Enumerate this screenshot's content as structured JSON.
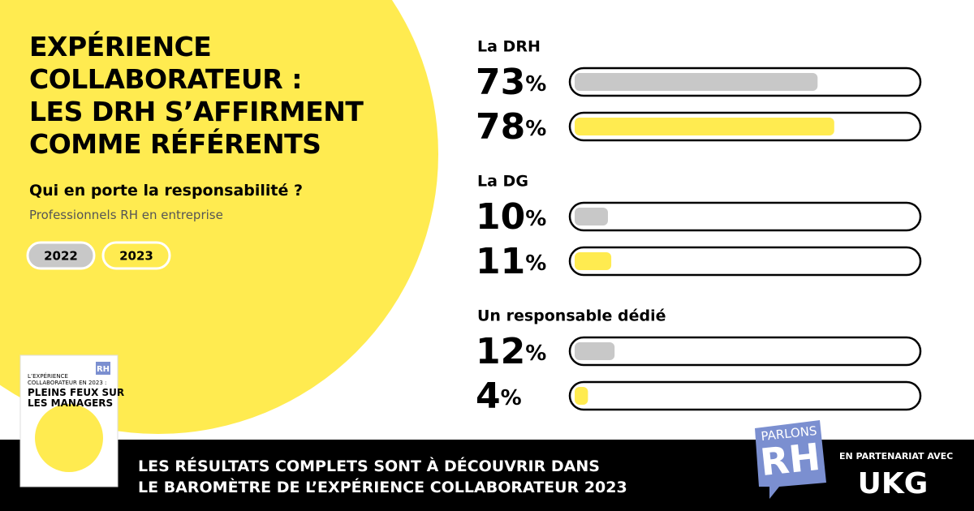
{
  "chart_data": {
    "type": "bar",
    "title": "EXPÉRIENCE\nCOLLABORATEUR :\nLES DRH S’AFFIRMENT\nCOMME RÉFÉRENTS",
    "subtitle": "Qui en porte la responsabilité ?",
    "note": "Professionnels RH en entreprise",
    "categories": [
      "La DRH",
      "La DG",
      "Un responsable dédié"
    ],
    "series": [
      {
        "name": "2022",
        "color": "#c8c8c8",
        "values": [
          73,
          10,
          12
        ],
        "value_labels": [
          "73%",
          "10%",
          "12%"
        ]
      },
      {
        "name": "2023",
        "color": "#ffeb50",
        "values": [
          78,
          11,
          4
        ],
        "value_labels": [
          "78%",
          "11%",
          "4%"
        ]
      }
    ],
    "xlim": [
      0,
      100
    ]
  },
  "footer": {
    "text": "LES RÉSULTATS COMPLETS SONT À DÉCOUVRIR DANS\nLE BAROMÈTRE DE L’EXPÉRIENCE COLLABORATEUR 2023",
    "partner_label": "EN PARTENARIAT AVEC",
    "logo_top": "PARLONS",
    "logo_main": "RH",
    "partner": "UKG"
  },
  "cover": {
    "kicker": "L’EXPÉRIENCE COLLABORATEUR EN 2023 :",
    "headline": "PLEINS FEUX SUR\nLES MANAGERS",
    "badge": "RH"
  }
}
